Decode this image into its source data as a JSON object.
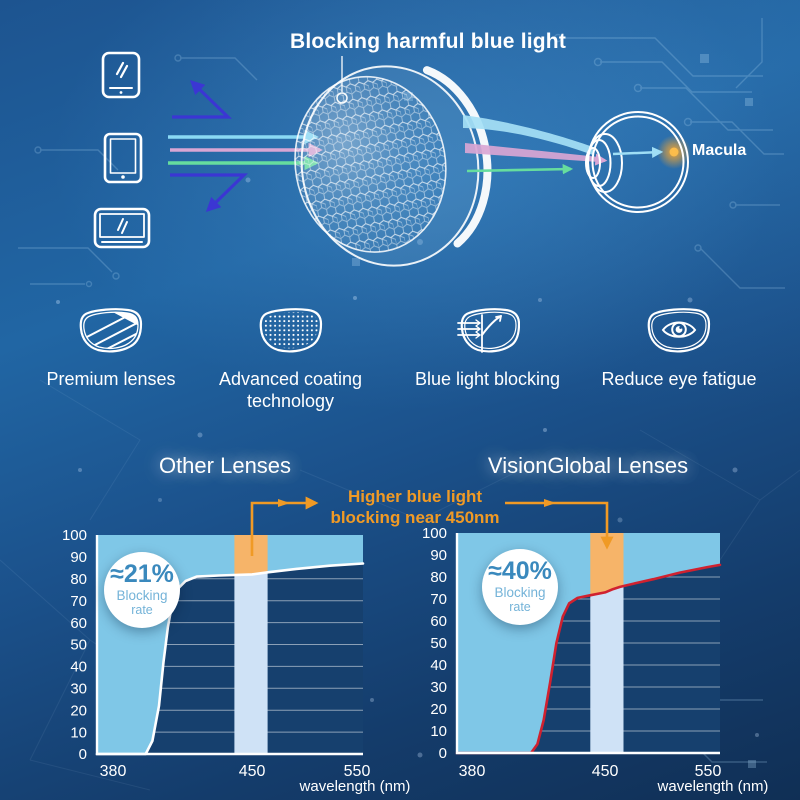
{
  "header": {
    "title": "Blocking harmful blue light",
    "macula_label": "Macula",
    "device_icons": [
      "smartphone-icon",
      "tablet-icon",
      "monitor-icon"
    ],
    "lens_icon": "coated-lens-3d",
    "eye_icon": "eye-cross-section"
  },
  "features": [
    {
      "icon": "premium-lens-icon",
      "label": "Premium lenses"
    },
    {
      "icon": "coating-technology-icon",
      "label": "Advanced coating technology"
    },
    {
      "icon": "blue-light-blocking-icon",
      "label": "Blue light blocking"
    },
    {
      "icon": "reduce-eye-fatigue-icon",
      "label": "Reduce eye fatigue"
    }
  ],
  "comparison": {
    "annotation_line1": "Higher blue light",
    "annotation_line2": "blocking near 450nm"
  },
  "chart_data": [
    {
      "type": "area",
      "title": "Other Lenses",
      "xlabel": "wavelength (nm)",
      "xlim": [
        380,
        550
      ],
      "ylim": [
        0,
        100
      ],
      "x_ticks": [
        380,
        450,
        550
      ],
      "y_ticks": [
        0,
        10,
        20,
        30,
        40,
        50,
        60,
        70,
        80,
        90,
        100
      ],
      "grid": true,
      "badge": {
        "value": "≈21%",
        "label_line1": "Blocking",
        "label_line2": "rate"
      },
      "band_nm": [
        442,
        464
      ],
      "curve_color": "#ffffff",
      "fill_above_color": "#7fc7e7",
      "band_above_color": "#f6b469",
      "band_below_color": "#cfe2f6",
      "curve": {
        "x": [
          380,
          402,
          405,
          408,
          410,
          412,
          414,
          417,
          420,
          425,
          435,
          450,
          465,
          490,
          520,
          550
        ],
        "values": [
          0,
          0,
          6,
          22,
          42,
          58,
          69,
          76,
          79,
          81,
          81.5,
          82,
          83,
          84.5,
          86,
          87
        ]
      }
    },
    {
      "type": "area",
      "title": "VisionGlobal Lenses",
      "xlabel": "wavelength (nm)",
      "xlim": [
        380,
        550
      ],
      "ylim": [
        0,
        100
      ],
      "x_ticks": [
        380,
        450,
        550
      ],
      "y_ticks": [
        0,
        10,
        20,
        30,
        40,
        50,
        60,
        70,
        80,
        90,
        100
      ],
      "grid": true,
      "badge": {
        "value": "≈40%",
        "label_line1": "Blocking",
        "label_line2": "rate"
      },
      "band_nm": [
        443,
        466
      ],
      "curve_color": "#d0212f",
      "fill_above_color": "#7fc7e7",
      "band_above_color": "#f6b469",
      "band_below_color": "#cfe2f6",
      "curve": {
        "x": [
          380,
          415,
          418,
          421,
          424,
          427,
          430,
          433,
          437,
          442,
          450,
          457,
          463,
          475,
          492,
          515,
          539,
          550
        ],
        "values": [
          0,
          0,
          4,
          15,
          32,
          50,
          62,
          68,
          70.5,
          71.5,
          73,
          74.5,
          75.5,
          77,
          79,
          82,
          84.5,
          85.5
        ]
      }
    }
  ],
  "colors": {
    "background_top": "#1d5490",
    "background_bottom": "#0f2f55",
    "accent_orange": "#f09a25",
    "chart_fill_light_blue": "#7fc7e7",
    "band_pale_blue": "#cfe2f6",
    "band_orange": "#f6b469",
    "plot_dark": "#16406e",
    "curve_white": "#ffffff",
    "curve_red": "#d0212f",
    "ray_cyan": "#8ad9f4",
    "ray_pink": "#d9a6d4",
    "ray_green": "#66dd9e",
    "reflected_arrow_blue": "#3b36d3",
    "macula_glow": "#f7a62e",
    "badge_value_blue": "#3a89bd",
    "badge_label_blue": "#74b3d8",
    "icon_white": "#ffffff"
  }
}
